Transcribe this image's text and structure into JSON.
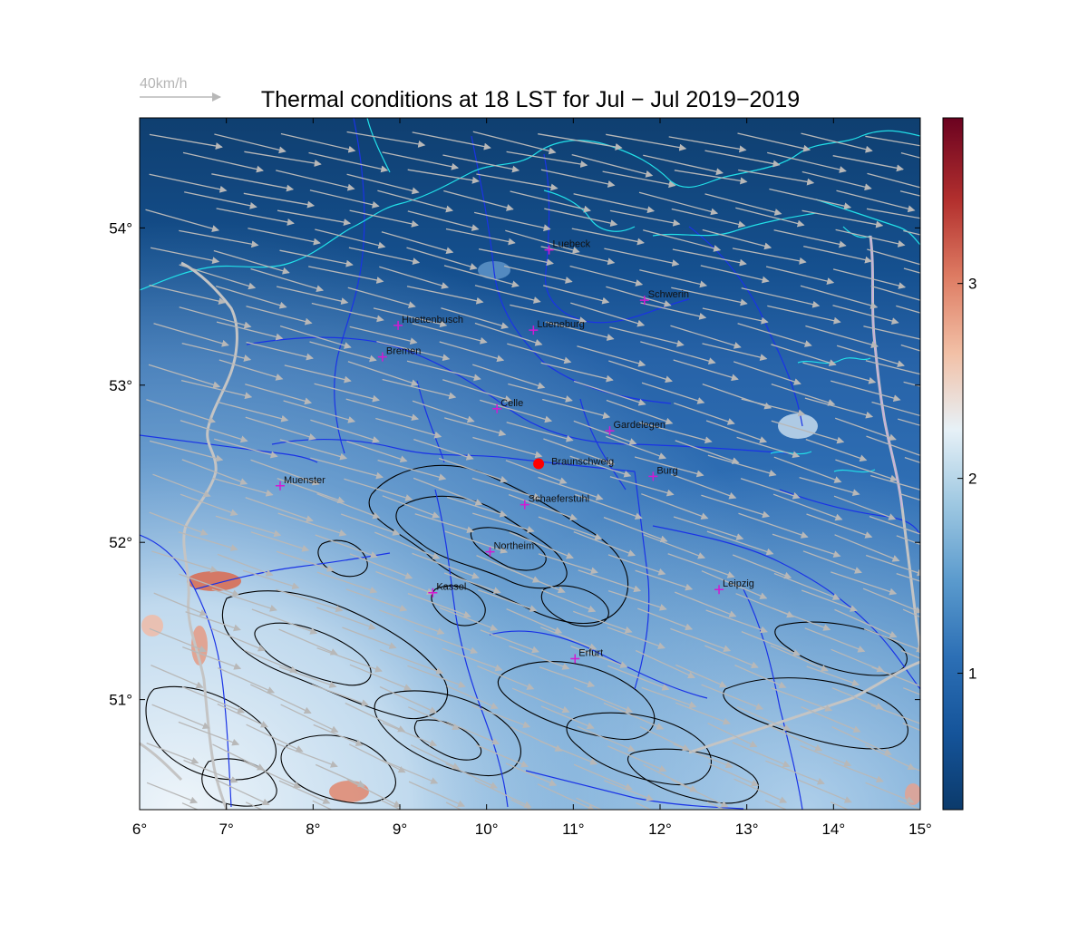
{
  "title": "Thermal conditions at 18 LST for Jul − Jul  2019−2019",
  "wind_reference_label": "40km/h",
  "map": {
    "lon_range": [
      6,
      15
    ],
    "lat_range": [
      50.3,
      54.7
    ],
    "x_ticks": [
      {
        "value": 6,
        "label": "6°"
      },
      {
        "value": 7,
        "label": "7°"
      },
      {
        "value": 8,
        "label": "8°"
      },
      {
        "value": 9,
        "label": "9°"
      },
      {
        "value": 10,
        "label": "10°"
      },
      {
        "value": 11,
        "label": "11°"
      },
      {
        "value": 12,
        "label": "12°"
      },
      {
        "value": 13,
        "label": "13°"
      },
      {
        "value": 14,
        "label": "14°"
      },
      {
        "value": 15,
        "label": "15°"
      }
    ],
    "y_ticks": [
      {
        "value": 51,
        "label": "51°"
      },
      {
        "value": 52,
        "label": "52°"
      },
      {
        "value": 53,
        "label": "53°"
      },
      {
        "value": 54,
        "label": "54°"
      }
    ],
    "cities": [
      {
        "name": "Luebeck",
        "lon": 10.72,
        "lat": 53.86
      },
      {
        "name": "Schwerin",
        "lon": 11.82,
        "lat": 53.54
      },
      {
        "name": "Huettenbusch",
        "lon": 8.98,
        "lat": 53.38
      },
      {
        "name": "Lueneburg",
        "lon": 10.54,
        "lat": 53.35
      },
      {
        "name": "Bremen",
        "lon": 8.8,
        "lat": 53.18
      },
      {
        "name": "Celle",
        "lon": 10.12,
        "lat": 52.85
      },
      {
        "name": "Gardelegen",
        "lon": 11.42,
        "lat": 52.71
      },
      {
        "name": "Braunschweig",
        "lon": 10.6,
        "lat": 52.5,
        "highlight": true
      },
      {
        "name": "Burg",
        "lon": 11.92,
        "lat": 52.42
      },
      {
        "name": "Muenster",
        "lon": 7.62,
        "lat": 52.36
      },
      {
        "name": "Schaeferstuhl",
        "lon": 10.44,
        "lat": 52.24
      },
      {
        "name": "Northeim",
        "lon": 10.04,
        "lat": 51.94
      },
      {
        "name": "Kassel",
        "lon": 9.38,
        "lat": 51.68
      },
      {
        "name": "Leipzig",
        "lon": 12.68,
        "lat": 51.7
      },
      {
        "name": "Erfurt",
        "lon": 11.02,
        "lat": 51.26
      }
    ]
  },
  "colorbar": {
    "min": 0.3,
    "max": 3.85,
    "ticks": [
      {
        "value": 1,
        "label": "1"
      },
      {
        "value": 2,
        "label": "2"
      },
      {
        "value": 3,
        "label": "3"
      }
    ],
    "colors": [
      "#0b3a6b",
      "#15549a",
      "#2c6fb5",
      "#5a9acd",
      "#9dc7e1",
      "#e7f1f7",
      "#f2c0a6",
      "#de7c63",
      "#b3302e",
      "#6b0220"
    ]
  },
  "colors": {
    "coastline": "#22e0e8",
    "rivers_borders": "#1a33e6",
    "terrain_contours": "#000000",
    "country_border": "#c4c4c4",
    "wind_arrows": "#b8b8b8",
    "city_marker": "#d21ad2",
    "highlight_marker": "#ff0000"
  }
}
